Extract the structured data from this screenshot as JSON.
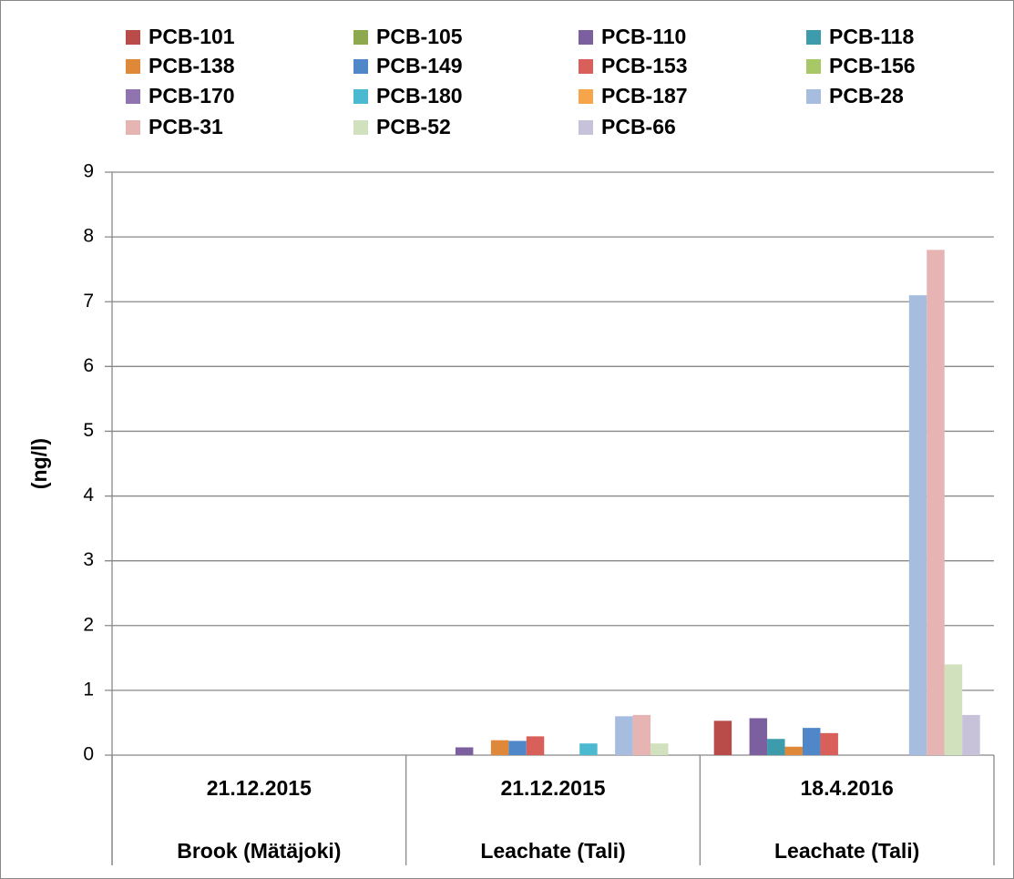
{
  "chart_data": {
    "type": "bar",
    "y_label": "(ng/l)",
    "categories": [
      "21.12.2015",
      "21.12.2015",
      "18.4.2016"
    ],
    "category_groups": [
      "Brook (Mätäjoki)",
      "Leachate (Tali)",
      "Leachate (Tali)"
    ],
    "ylim": [
      0,
      9
    ],
    "yticks": [
      0,
      1,
      2,
      3,
      4,
      5,
      6,
      7,
      8,
      9
    ],
    "grid": true,
    "legend": "top",
    "series": [
      {
        "name": "PCB-101",
        "color": "#b94c48",
        "values": [
          0,
          0,
          0.53
        ]
      },
      {
        "name": "PCB-105",
        "color": "#8ea84d",
        "values": [
          0,
          0,
          0
        ]
      },
      {
        "name": "PCB-110",
        "color": "#7b5f9e",
        "values": [
          0,
          0.12,
          0.57
        ]
      },
      {
        "name": "PCB-118",
        "color": "#3e9bab",
        "values": [
          0,
          0,
          0.25
        ]
      },
      {
        "name": "PCB-138",
        "color": "#e0883a",
        "values": [
          0,
          0.23,
          0.13
        ]
      },
      {
        "name": "PCB-149",
        "color": "#4f87c8",
        "values": [
          0,
          0.22,
          0.42
        ]
      },
      {
        "name": "PCB-153",
        "color": "#d9605a",
        "values": [
          0,
          0.29,
          0.34
        ]
      },
      {
        "name": "PCB-156",
        "color": "#a8c867",
        "values": [
          0,
          0,
          0
        ]
      },
      {
        "name": "PCB-170",
        "color": "#8f74b0",
        "values": [
          0,
          0,
          0
        ]
      },
      {
        "name": "PCB-180",
        "color": "#4bbad0",
        "values": [
          0,
          0.18,
          0
        ]
      },
      {
        "name": "PCB-187",
        "color": "#f7a54a",
        "values": [
          0,
          0,
          0
        ]
      },
      {
        "name": "PCB-28",
        "color": "#a7bde0",
        "values": [
          0,
          0.6,
          7.1
        ]
      },
      {
        "name": "PCB-31",
        "color": "#e6b4b3",
        "values": [
          0,
          0.62,
          7.8
        ]
      },
      {
        "name": "PCB-52",
        "color": "#d1e0bd",
        "values": [
          0,
          0.18,
          1.4
        ]
      },
      {
        "name": "PCB-66",
        "color": "#c8c1da",
        "values": [
          0,
          0,
          0.62
        ]
      }
    ]
  }
}
